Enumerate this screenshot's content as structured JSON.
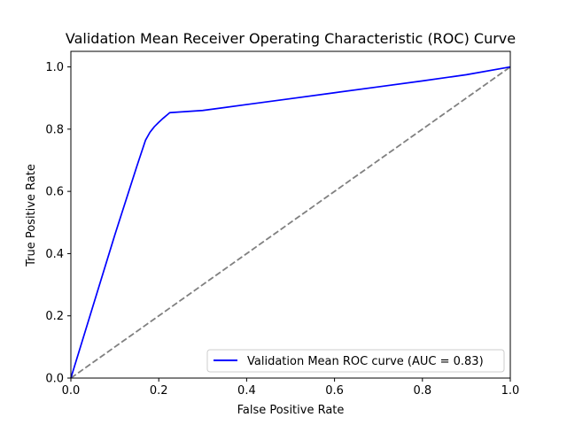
{
  "chart_data": {
    "type": "line",
    "title": "Validation Mean Receiver Operating Characteristic (ROC) Curve",
    "xlabel": "False Positive Rate",
    "ylabel": "True Positive Rate",
    "xlim": [
      0.0,
      1.0
    ],
    "ylim": [
      0.0,
      1.05
    ],
    "xticks": [
      0.0,
      0.2,
      0.4,
      0.6,
      0.8,
      1.0
    ],
    "xtick_labels": [
      "0.0",
      "0.2",
      "0.4",
      "0.6",
      "0.8",
      "1.0"
    ],
    "yticks": [
      0.0,
      0.2,
      0.4,
      0.6,
      0.8,
      1.0
    ],
    "ytick_labels": [
      "0.0",
      "0.2",
      "0.4",
      "0.6",
      "0.8",
      "1.0"
    ],
    "grid": false,
    "legend_position": "lower-right",
    "series": [
      {
        "name": "Validation Mean ROC curve (AUC = 0.83)",
        "color": "#0000ff",
        "style": "solid",
        "x": [
          0.0,
          0.05,
          0.1,
          0.15,
          0.17,
          0.18,
          0.19,
          0.2,
          0.21,
          0.22,
          0.225,
          0.3,
          0.4,
          0.5,
          0.6,
          0.7,
          0.8,
          0.9,
          1.0
        ],
        "y": [
          0.0,
          0.23,
          0.46,
          0.68,
          0.765,
          0.79,
          0.808,
          0.822,
          0.835,
          0.847,
          0.853,
          0.86,
          0.879,
          0.898,
          0.917,
          0.936,
          0.955,
          0.975,
          1.0
        ]
      },
      {
        "name": "",
        "color": "#808080",
        "style": "dashed",
        "x": [
          0.0,
          1.0
        ],
        "y": [
          0.0,
          1.0
        ]
      }
    ]
  }
}
